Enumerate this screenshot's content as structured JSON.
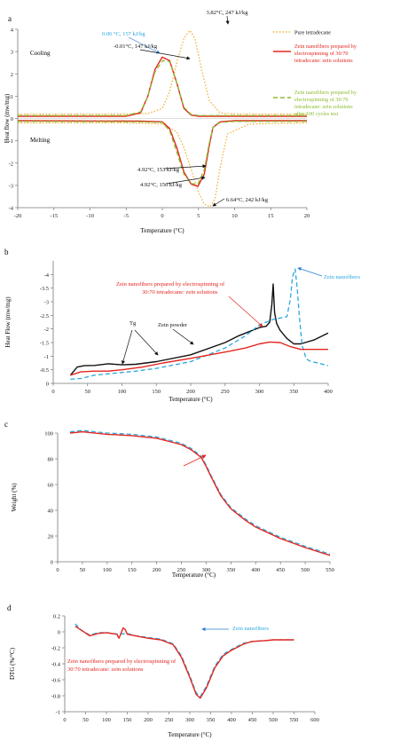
{
  "colors": {
    "pure": "#f2b134",
    "red": "#e3261f",
    "green": "#8bbb2f",
    "black": "#111111",
    "blue": "#2aa7df",
    "grid": "#d9d9d9",
    "axis": "#777777",
    "arrow_red": "#e3261f",
    "arrow_blue": "#2b7bd6"
  },
  "chart_data": [
    {
      "panel_label": "a",
      "type": "line",
      "xlabel": "Temperature (°C)",
      "ylabel": "Heat flow (mw/mg)",
      "xlim": [
        -20,
        20
      ],
      "ylim": [
        -4,
        4
      ],
      "x_ticks": [
        -20,
        -15,
        -10,
        -5,
        0,
        5,
        10,
        15,
        20
      ],
      "y_ticks": [
        -4,
        -3,
        -2,
        -1,
        0,
        1,
        2,
        3,
        4
      ],
      "grid": false,
      "legend_position": "right",
      "region_labels": [
        "Cooling",
        "Melting"
      ],
      "series": [
        {
          "name": "Pure tetradecane",
          "style": "dotted",
          "color_key": "pure",
          "x": [
            -20,
            -5,
            -2,
            0,
            1,
            2,
            3,
            3.82,
            4.5,
            5.5,
            6.5,
            8,
            10,
            20,
            -20,
            -5,
            0,
            2,
            3,
            4,
            5,
            5.8,
            6.64,
            7.3,
            8,
            9,
            12,
            20
          ],
          "y": [
            0.2,
            0.2,
            0.22,
            0.45,
            1.2,
            2.5,
            3.6,
            3.95,
            3.6,
            2.1,
            0.8,
            0.25,
            0.2,
            0.2,
            -0.2,
            -0.2,
            -0.25,
            -0.6,
            -1.3,
            -2.3,
            -3.3,
            -3.85,
            -3.95,
            -3.6,
            -2.2,
            -0.7,
            -0.25,
            -0.2
          ],
          "segments": [
            [
              0,
              13
            ],
            [
              14,
              27
            ]
          ]
        },
        {
          "name": "Zein nanofibers prepared by electrospinning of 30:70 tetradecane: zein solutions",
          "style": "solid",
          "color_key": "red",
          "x": [
            -20,
            -5,
            -3,
            -2,
            -1,
            -0.01,
            1,
            2,
            3,
            4,
            5,
            10,
            20,
            -20,
            -3,
            0,
            1,
            2,
            3,
            4,
            4.92,
            5.8,
            6.5,
            7,
            8,
            10,
            20
          ],
          "y": [
            0.1,
            0.1,
            0.25,
            1.0,
            2.2,
            2.75,
            2.6,
            1.6,
            0.45,
            0.15,
            0.1,
            0.1,
            0.1,
            -0.1,
            -0.12,
            -0.15,
            -0.45,
            -1.3,
            -2.4,
            -2.95,
            -3.05,
            -2.5,
            -1.2,
            -0.4,
            -0.15,
            -0.1,
            -0.1
          ],
          "segments": [
            [
              0,
              12
            ],
            [
              13,
              26
            ]
          ]
        },
        {
          "name": "Zein nanofibers prepared by electrospinning of 30:70 tetradecane: zein solutions after 100 cycles test",
          "style": "dashed",
          "color_key": "green",
          "x": [
            -20,
            -5,
            -3,
            -2,
            -1,
            0.06,
            1,
            2,
            3,
            4,
            5,
            10,
            20,
            -20,
            -3,
            0,
            1,
            2,
            3,
            4,
            4.92,
            5.8,
            6.5,
            7,
            8,
            10,
            20
          ],
          "y": [
            0.13,
            0.13,
            0.3,
            1.0,
            2.1,
            2.6,
            2.55,
            1.6,
            0.5,
            0.18,
            0.13,
            0.13,
            0.13,
            -0.13,
            -0.15,
            -0.18,
            -0.55,
            -1.5,
            -2.5,
            -2.92,
            -2.95,
            -2.3,
            -1.1,
            -0.4,
            -0.18,
            -0.13,
            -0.13
          ],
          "segments": [
            [
              0,
              12
            ],
            [
              13,
              26
            ]
          ]
        }
      ],
      "annotations": [
        {
          "text": "3.82°C, 247 kJ/kg",
          "color_key": "black",
          "ax": 3.82,
          "ay": 3.95
        },
        {
          "text": "0.06 °C, 157 kJ/kg",
          "color_key": "blue",
          "ax": 0.06,
          "ay": 2.6
        },
        {
          "text": "-0.01°C, 147 kJ/kg",
          "color_key": "black",
          "ax": -0.01,
          "ay": 2.75
        },
        {
          "text": "4.92°C, 153 kJ/kg",
          "color_key": "black",
          "ax": 4.92,
          "ay": -2.95
        },
        {
          "text": "4.92°C, 156 kJ/kg",
          "color_key": "black",
          "ax": 4.92,
          "ay": -3.05
        },
        {
          "text": "6.64°C, 242 kJ/kg",
          "color_key": "black",
          "ax": 6.64,
          "ay": -3.95
        }
      ]
    },
    {
      "panel_label": "b",
      "type": "line",
      "xlabel": "Temperature (°C)",
      "ylabel": "Heat Flow (mw/mg)",
      "xlim": [
        0,
        400
      ],
      "ylim": [
        0,
        -4.5
      ],
      "x_ticks": [
        0,
        50,
        100,
        150,
        200,
        250,
        300,
        350,
        400
      ],
      "y_ticks": [
        0,
        -0.5,
        -1,
        -1.5,
        -2,
        -2.5,
        -3,
        -3.5,
        -4
      ],
      "grid": false,
      "series": [
        {
          "name": "Zein powder",
          "style": "solid",
          "color_key": "black",
          "x": [
            25,
            35,
            45,
            60,
            80,
            100,
            120,
            150,
            200,
            250,
            270,
            290,
            300,
            310,
            315,
            318,
            320,
            322,
            325,
            330,
            340,
            350,
            360,
            380,
            400
          ],
          "y": [
            -0.3,
            -0.6,
            -0.65,
            -0.66,
            -0.72,
            -0.68,
            -0.7,
            -0.8,
            -1.05,
            -1.5,
            -1.75,
            -1.95,
            -2.05,
            -2.1,
            -2.25,
            -2.9,
            -3.65,
            -2.6,
            -2.2,
            -1.95,
            -1.65,
            -1.45,
            -1.45,
            -1.6,
            -1.85
          ]
        },
        {
          "name": "Zein nanofibers",
          "style": "dashed",
          "color_key": "blue",
          "x": [
            25,
            40,
            60,
            80,
            100,
            120,
            150,
            200,
            250,
            280,
            300,
            320,
            330,
            340,
            345,
            348,
            352,
            355,
            358,
            362,
            368,
            375,
            385,
            400
          ],
          "y": [
            -0.15,
            -0.18,
            -0.3,
            -0.35,
            -0.4,
            -0.45,
            -0.55,
            -0.8,
            -1.3,
            -1.75,
            -2.15,
            -2.35,
            -2.4,
            -2.45,
            -3.1,
            -3.9,
            -4.2,
            -3.5,
            -2.5,
            -1.4,
            -0.9,
            -0.8,
            -0.75,
            -0.65
          ]
        },
        {
          "name": "Zein nanofibers prepared by electrospinning of 30:70 tetradecane: zein solutions",
          "style": "solid",
          "color_key": "red",
          "x": [
            25,
            40,
            60,
            80,
            100,
            130,
            160,
            200,
            250,
            280,
            300,
            315,
            330,
            345,
            360,
            380,
            400
          ],
          "y": [
            -0.3,
            -0.42,
            -0.45,
            -0.45,
            -0.5,
            -0.6,
            -0.75,
            -0.92,
            -1.15,
            -1.3,
            -1.45,
            -1.52,
            -1.5,
            -1.35,
            -1.25,
            -1.25,
            -1.25
          ]
        }
      ],
      "annotations": [
        {
          "text": "Zein nanofibers",
          "color_key": "blue",
          "ax": 350,
          "ay": -4.2
        },
        {
          "text": "Zein nanofibers prepared by electrospinning of",
          "color_key": "red",
          "ax": 305,
          "ay": -1.5
        },
        {
          "text": "30:70 tetradecane: zein solutions",
          "color_key": "red",
          "ax": 305,
          "ay": -1.5
        },
        {
          "text": "Zein powder",
          "color_key": "black",
          "ax": 205,
          "ay": -1.15
        },
        {
          "text": "Tg",
          "color_key": "black",
          "ax": 145,
          "ay": -0.55
        }
      ]
    },
    {
      "panel_label": "c",
      "type": "line",
      "xlabel": "Temperature (°C)",
      "ylabel": "Weight (%)",
      "xlim": [
        0,
        550
      ],
      "ylim": [
        0,
        100
      ],
      "x_ticks": [
        0,
        50,
        100,
        150,
        200,
        250,
        300,
        350,
        400,
        450,
        500,
        550
      ],
      "y_ticks": [
        0,
        20,
        40,
        60,
        80,
        100
      ],
      "grid": false,
      "series": [
        {
          "name": "Zein nanofibers",
          "style": "dashed",
          "color_key": "blue",
          "x": [
            25,
            50,
            100,
            150,
            200,
            250,
            270,
            290,
            300,
            310,
            330,
            350,
            380,
            400,
            450,
            500,
            550
          ],
          "y": [
            101,
            102,
            100,
            99,
            97,
            92,
            88,
            82,
            75,
            67,
            52,
            42,
            33,
            28,
            19,
            12,
            6
          ]
        },
        {
          "name": "Zein nanofibers prepared by electrospinning of 30:70 tetradecane: zein solutions",
          "style": "solid",
          "color_key": "red",
          "x": [
            25,
            50,
            100,
            150,
            200,
            250,
            270,
            290,
            300,
            310,
            330,
            350,
            380,
            400,
            450,
            500,
            550
          ],
          "y": [
            100,
            101,
            99,
            98,
            96,
            91,
            87,
            81,
            74,
            66,
            51,
            41,
            32,
            27,
            18,
            11,
            5
          ]
        }
      ],
      "annotations": []
    },
    {
      "panel_label": "d",
      "type": "line",
      "xlabel": "Temperature (°C)",
      "ylabel": "DTG (%/°C)",
      "xlim": [
        0,
        600
      ],
      "ylim": [
        -1,
        0.2
      ],
      "x_ticks": [
        0,
        50,
        100,
        150,
        200,
        250,
        300,
        350,
        400,
        450,
        500,
        550,
        600
      ],
      "y_ticks": [
        0.2,
        0,
        -0.2,
        -0.4,
        -0.6,
        -0.8,
        -1
      ],
      "grid": false,
      "series": [
        {
          "name": "Zein nanofibers",
          "style": "dashed",
          "color_key": "blue",
          "x": [
            25,
            40,
            60,
            80,
            100,
            130,
            150,
            170,
            200,
            230,
            260,
            280,
            300,
            315,
            325,
            340,
            360,
            380,
            400,
            430,
            450,
            480,
            500,
            550
          ],
          "y": [
            0.1,
            0.02,
            -0.04,
            -0.01,
            -0.01,
            -0.03,
            -0.02,
            -0.05,
            -0.07,
            -0.09,
            -0.15,
            -0.3,
            -0.55,
            -0.76,
            -0.81,
            -0.68,
            -0.43,
            -0.28,
            -0.22,
            -0.14,
            -0.12,
            -0.11,
            -0.1,
            -0.1
          ]
        },
        {
          "name": "Zein nanofibers prepared by electrospinning of 30:70 tetradecane: zein solutions",
          "style": "solid",
          "color_key": "red",
          "x": [
            25,
            40,
            60,
            80,
            100,
            125,
            130,
            135,
            140,
            145,
            150,
            170,
            200,
            230,
            260,
            280,
            300,
            315,
            325,
            340,
            360,
            380,
            400,
            430,
            450,
            480,
            500,
            550
          ],
          "y": [
            0.07,
            0.02,
            -0.05,
            -0.02,
            -0.01,
            -0.03,
            -0.08,
            -0.02,
            0.05,
            0.03,
            -0.03,
            -0.05,
            -0.08,
            -0.1,
            -0.16,
            -0.32,
            -0.57,
            -0.78,
            -0.83,
            -0.7,
            -0.45,
            -0.3,
            -0.23,
            -0.15,
            -0.12,
            -0.11,
            -0.1,
            -0.1
          ]
        }
      ],
      "annotations": [
        {
          "text": "Zein nanofibers",
          "color_key": "blue",
          "ax": 260,
          "ay": 0.11
        },
        {
          "text": "Zein nanofibers prepared by electrospinning of",
          "color_key": "red",
          "ax": 0,
          "ay": 0
        },
        {
          "text": "30:70 tetradecane: zein solutions",
          "color_key": "red",
          "ax": 0,
          "ay": 0
        }
      ]
    }
  ]
}
